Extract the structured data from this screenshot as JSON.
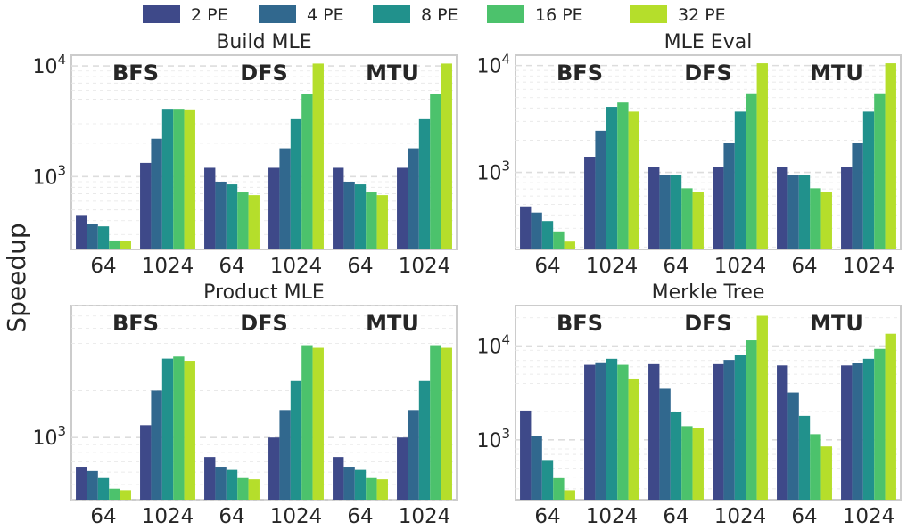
{
  "chart_data": {
    "type": "bar",
    "ylabel": "Speedup",
    "yscale": "log",
    "legend": {
      "placement": "top-center",
      "entries": [
        "2 PE",
        "4 PE",
        "8 PE",
        "16 PE",
        "32 PE"
      ]
    },
    "colors": [
      "#3e4989",
      "#31688e",
      "#21918c",
      "#4cc26c",
      "#b5de2b"
    ],
    "groups": [
      "BFS",
      "DFS",
      "MTU"
    ],
    "categories": [
      "64",
      "1024",
      "64",
      "1024",
      "64",
      "1024"
    ],
    "panels": [
      {
        "title": "Build MLE",
        "ylim": [
          220,
          12500
        ],
        "yticks": [
          {
            "value": 1000,
            "base": "10",
            "exp": "3"
          },
          {
            "value": 10000,
            "base": "10",
            "exp": "4"
          }
        ],
        "clusters": [
          [
            450,
            370,
            355,
            265,
            260
          ],
          [
            1330,
            2200,
            4100,
            4100,
            4050
          ],
          [
            1200,
            900,
            850,
            720,
            680
          ],
          [
            1200,
            1800,
            3300,
            5600,
            10500
          ],
          [
            1200,
            900,
            850,
            720,
            680
          ],
          [
            1200,
            1800,
            3300,
            5600,
            10500
          ]
        ]
      },
      {
        "title": "MLE Eval",
        "ylim": [
          190,
          12500
        ],
        "yticks": [
          {
            "value": 1000,
            "base": "10",
            "exp": "3"
          },
          {
            "value": 10000,
            "base": "10",
            "exp": "4"
          }
        ],
        "clusters": [
          [
            480,
            420,
            350,
            280,
            225
          ],
          [
            1400,
            2450,
            4100,
            4500,
            3700
          ],
          [
            1130,
            950,
            940,
            710,
            660
          ],
          [
            1130,
            1870,
            3700,
            5500,
            10500
          ],
          [
            1130,
            950,
            940,
            710,
            660
          ],
          [
            1130,
            1870,
            3700,
            5500,
            10500
          ]
        ]
      },
      {
        "title": "Product MLE",
        "ylim": [
          400,
          7000
        ],
        "yticks": [
          {
            "value": 1000,
            "base": "10",
            "exp": "3"
          }
        ],
        "clusters": [
          [
            650,
            610,
            550,
            470,
            460
          ],
          [
            1200,
            2000,
            3200,
            3300,
            3100
          ],
          [
            750,
            650,
            620,
            550,
            540
          ],
          [
            1000,
            1500,
            2300,
            3900,
            3750
          ],
          [
            750,
            650,
            620,
            550,
            540
          ],
          [
            1000,
            1500,
            2300,
            3900,
            3750
          ]
        ]
      },
      {
        "title": "Merkle Tree",
        "ylim": [
          230,
          27000
        ],
        "yticks": [
          {
            "value": 1000,
            "base": "10",
            "exp": "3"
          },
          {
            "value": 10000,
            "base": "10",
            "exp": "4"
          }
        ],
        "clusters": [
          [
            2050,
            1100,
            610,
            390,
            290
          ],
          [
            6300,
            6700,
            7300,
            6300,
            4500
          ],
          [
            6400,
            3500,
            2000,
            1400,
            1350
          ],
          [
            6400,
            7100,
            8100,
            11500,
            21000
          ],
          [
            6200,
            3200,
            1800,
            1150,
            850
          ],
          [
            6200,
            6600,
            7300,
            9300,
            13500
          ]
        ]
      }
    ]
  }
}
